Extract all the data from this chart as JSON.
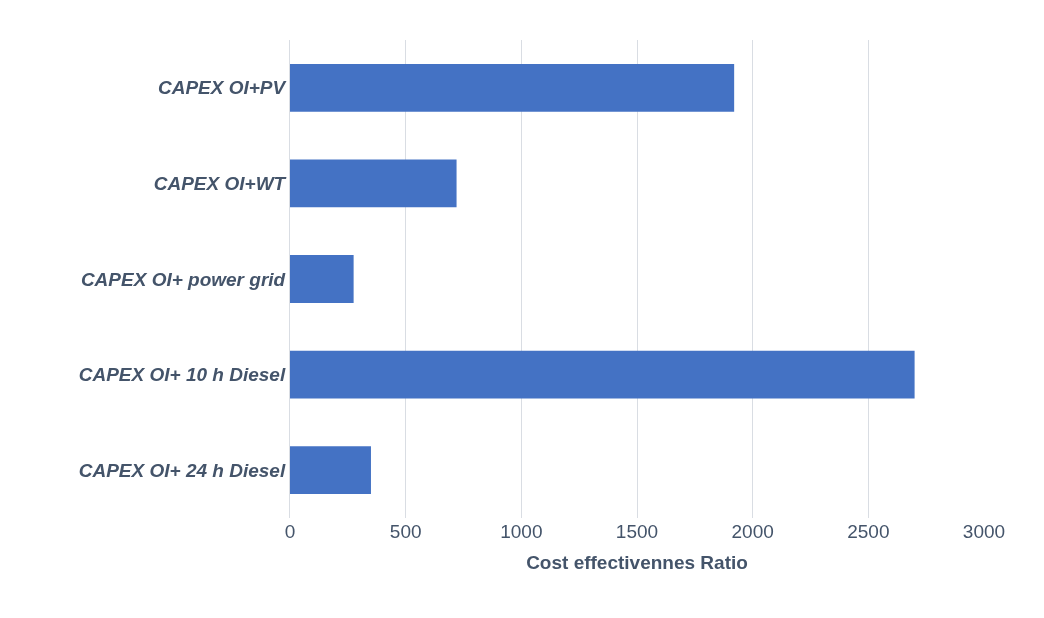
{
  "chart_data": {
    "type": "bar",
    "orientation": "horizontal",
    "xlabel": "Cost effectivennes Ratio",
    "categories": [
      "CAPEX OI+PV",
      "CAPEX OI+WT",
      "CAPEX OI+ power grid",
      "CAPEX OI+ 10 h Diesel",
      "CAPEX OI+ 24 h Diesel"
    ],
    "values": [
      1920,
      720,
      275,
      2700,
      350
    ],
    "color": "#4472c4",
    "xlim": [
      0,
      3000
    ],
    "xticks": [
      0,
      500,
      1000,
      1500,
      2000,
      2500,
      3000
    ],
    "grid": "x",
    "legend": false
  }
}
